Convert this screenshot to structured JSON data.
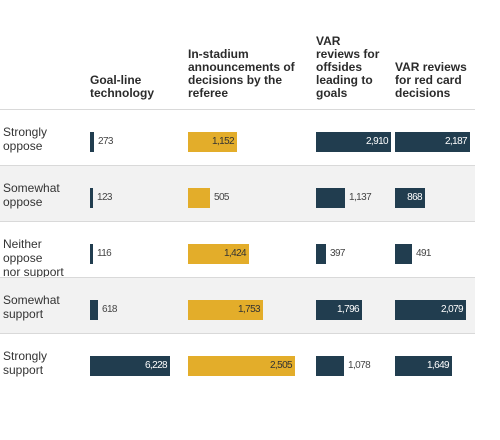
{
  "colors": {
    "dark": "#213d4f",
    "gold": "#e3ad2a",
    "shade": "#f2f2f2"
  },
  "chart_data": {
    "type": "table",
    "columns": [
      "Goal-line technology",
      "In-stadium announcements of decisions by the referee",
      "VAR reviews for offsides leading to goals",
      "VAR reviews for red card decisions"
    ],
    "column_header_lines": [
      [
        "Goal-line",
        "technology"
      ],
      [
        "In-stadium",
        "announcements of",
        "decisions by the",
        "referee"
      ],
      [
        "VAR",
        "reviews for",
        "offsides",
        "leading to",
        "goals"
      ],
      [
        "VAR reviews",
        "for red card",
        "decisions"
      ]
    ],
    "rows": [
      {
        "label": "Strongly oppose",
        "label_lines": [
          "Strongly",
          "oppose"
        ],
        "labels": [
          "273",
          "1,152",
          "2,910",
          "2,187"
        ],
        "values": [
          273,
          1152,
          2910,
          2187
        ]
      },
      {
        "label": "Somewhat oppose",
        "label_lines": [
          "Somewhat",
          "oppose"
        ],
        "labels": [
          "123",
          "505",
          "1,137",
          "868"
        ],
        "values": [
          123,
          505,
          1137,
          868
        ]
      },
      {
        "label": "Neither oppose nor support",
        "label_lines": [
          "Neither oppose",
          "nor support"
        ],
        "labels": [
          "116",
          "1,424",
          "397",
          "491"
        ],
        "values": [
          116,
          1424,
          397,
          491
        ]
      },
      {
        "label": "Somewhat support",
        "label_lines": [
          "Somewhat",
          "support"
        ],
        "labels": [
          "618",
          "1,753",
          "1,796",
          "2,079"
        ],
        "values": [
          618,
          1753,
          1796,
          2079
        ]
      },
      {
        "label": "Strongly support",
        "label_lines": [
          "Strongly",
          "support"
        ],
        "labels": [
          "6,228",
          "2,505",
          "1,078",
          "1,649"
        ],
        "values": [
          6228,
          2505,
          1078,
          1649
        ]
      }
    ]
  }
}
